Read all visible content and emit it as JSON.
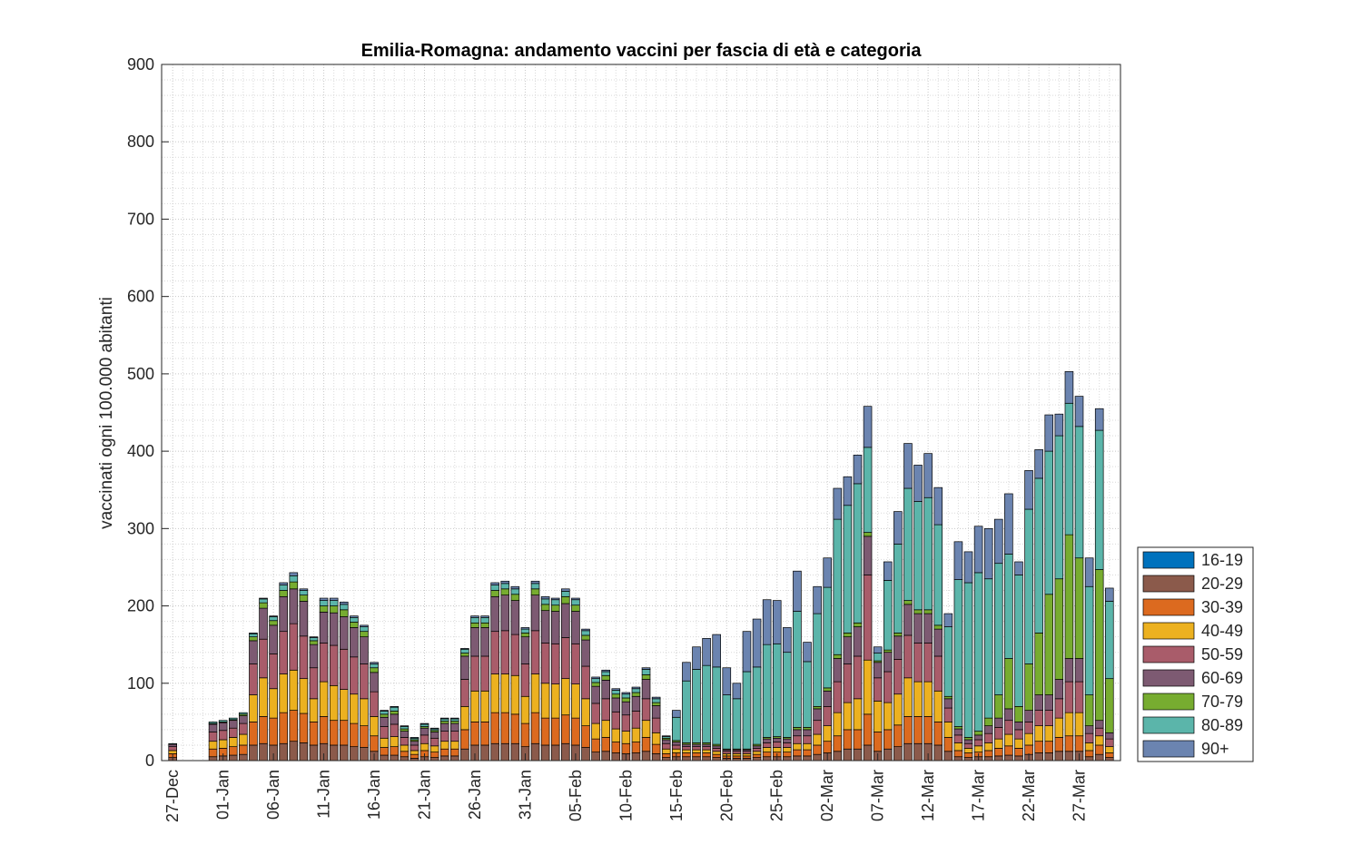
{
  "chart_data": {
    "type": "stacked_bar",
    "title": "Emilia-Romagna: andamento vaccini per fascia di età e categoria",
    "y_label": "vaccinati ogni 100.000 abitanti",
    "categories": [
      "27-Dec",
      null,
      null,
      null,
      null,
      "01-Jan",
      null,
      null,
      null,
      null,
      "06-Jan",
      null,
      null,
      null,
      null,
      "11-Jan",
      null,
      null,
      null,
      null,
      "16-Jan",
      null,
      null,
      null,
      null,
      "21-Jan",
      null,
      null,
      null,
      null,
      "26-Jan",
      null,
      null,
      null,
      null,
      "31-Jan",
      null,
      null,
      null,
      null,
      "05-Feb",
      null,
      null,
      null,
      null,
      "10-Feb",
      null,
      null,
      null,
      null,
      "15-Feb",
      null,
      null,
      null,
      null,
      "20-Feb",
      null,
      null,
      null,
      null,
      "25-Feb",
      null,
      null,
      null,
      null,
      "02-Mar",
      null,
      null,
      null,
      null,
      "07-Mar",
      null,
      null,
      null,
      null,
      "12-Mar",
      null,
      null,
      null,
      null,
      "17-Mar",
      null,
      null,
      null,
      null,
      "22-Mar",
      null,
      null,
      null,
      null,
      "27-Mar",
      null,
      null,
      null
    ],
    "ylim": [
      0,
      900
    ],
    "yticks": [
      0,
      100,
      200,
      300,
      400,
      500,
      600,
      700,
      800,
      900
    ],
    "grid": true,
    "minor_grid": true,
    "legend_position": "right",
    "series": [
      {
        "name": "16-19",
        "color": "#0072bd",
        "values": [
          0,
          0,
          0,
          0,
          0,
          0,
          0,
          0,
          0,
          0,
          0,
          0,
          0,
          0,
          0,
          0,
          0,
          0,
          0,
          0,
          0,
          0,
          0,
          0,
          0,
          0,
          0,
          0,
          0,
          0,
          0,
          0,
          0,
          0,
          0,
          0,
          0,
          0,
          0,
          0,
          0,
          0,
          0,
          0,
          0,
          0,
          0,
          0,
          0,
          0,
          0,
          0,
          0,
          0,
          0,
          0,
          0,
          0,
          0,
          0,
          0,
          0,
          0,
          0,
          0,
          0,
          0,
          0,
          0,
          0,
          0,
          0,
          0,
          0,
          0,
          0,
          0,
          0,
          0,
          0,
          0,
          0,
          0,
          0,
          0,
          0,
          0,
          0,
          0,
          0,
          0,
          0,
          0,
          0
        ]
      },
      {
        "name": "20-29",
        "color": "#8b5a4b",
        "values": [
          4,
          0,
          0,
          0,
          5,
          6,
          7,
          8,
          20,
          22,
          20,
          22,
          25,
          23,
          20,
          22,
          20,
          20,
          18,
          17,
          12,
          7,
          7,
          5,
          3,
          5,
          4,
          6,
          6,
          15,
          20,
          20,
          22,
          22,
          22,
          18,
          22,
          20,
          20,
          22,
          20,
          17,
          11,
          12,
          10,
          9,
          10,
          12,
          9,
          4,
          5,
          5,
          5,
          5,
          4,
          3,
          3,
          3,
          4,
          5,
          5,
          5,
          6,
          6,
          8,
          10,
          12,
          15,
          15,
          20,
          12,
          15,
          18,
          22,
          22,
          22,
          20,
          12,
          5,
          4,
          5,
          5,
          6,
          7,
          6,
          8,
          10,
          10,
          12,
          12,
          12,
          5,
          8,
          4
        ]
      },
      {
        "name": "30-39",
        "color": "#dc6a1f",
        "values": [
          5,
          0,
          0,
          0,
          10,
          10,
          11,
          12,
          30,
          35,
          35,
          40,
          40,
          38,
          30,
          35,
          32,
          32,
          30,
          28,
          20,
          10,
          11,
          7,
          5,
          8,
          7,
          9,
          9,
          25,
          30,
          30,
          40,
          40,
          38,
          30,
          40,
          35,
          35,
          37,
          35,
          28,
          17,
          18,
          14,
          13,
          14,
          18,
          12,
          5,
          5,
          5,
          5,
          5,
          4,
          3,
          3,
          3,
          4,
          6,
          6,
          6,
          8,
          8,
          12,
          15,
          20,
          25,
          25,
          40,
          25,
          25,
          28,
          35,
          35,
          35,
          30,
          18,
          8,
          6,
          6,
          8,
          10,
          12,
          10,
          12,
          15,
          15,
          18,
          20,
          20,
          8,
          12,
          6
        ]
      },
      {
        "name": "40-49",
        "color": "#ecb120",
        "values": [
          4,
          0,
          0,
          0,
          10,
          11,
          12,
          14,
          35,
          50,
          38,
          50,
          52,
          45,
          30,
          45,
          45,
          40,
          38,
          35,
          25,
          12,
          13,
          8,
          5,
          9,
          8,
          10,
          10,
          30,
          40,
          40,
          50,
          50,
          50,
          35,
          50,
          45,
          44,
          47,
          44,
          35,
          20,
          22,
          17,
          16,
          18,
          22,
          15,
          6,
          5,
          4,
          4,
          4,
          4,
          3,
          3,
          3,
          4,
          6,
          6,
          6,
          8,
          8,
          14,
          20,
          30,
          35,
          40,
          70,
          40,
          35,
          40,
          50,
          45,
          45,
          40,
          20,
          10,
          6,
          8,
          10,
          12,
          15,
          12,
          15,
          20,
          20,
          25,
          30,
          30,
          10,
          12,
          8
        ]
      },
      {
        "name": "50-59",
        "color": "#a95c6a",
        "values": [
          5,
          0,
          0,
          0,
          12,
          12,
          12,
          14,
          40,
          50,
          45,
          55,
          60,
          55,
          40,
          50,
          52,
          52,
          48,
          45,
          32,
          15,
          16,
          10,
          7,
          11,
          10,
          13,
          13,
          35,
          45,
          45,
          55,
          56,
          53,
          42,
          56,
          52,
          52,
          53,
          52,
          42,
          26,
          28,
          22,
          21,
          22,
          28,
          19,
          7,
          5,
          4,
          4,
          4,
          4,
          3,
          3,
          3,
          4,
          6,
          7,
          6,
          10,
          10,
          18,
          25,
          40,
          50,
          55,
          110,
          30,
          40,
          45,
          55,
          50,
          50,
          45,
          18,
          10,
          6,
          8,
          12,
          15,
          18,
          12,
          15,
          20,
          20,
          25,
          40,
          40,
          12,
          10,
          10
        ]
      },
      {
        "name": "60-69",
        "color": "#7d5a72",
        "values": [
          3,
          0,
          0,
          0,
          10,
          10,
          10,
          10,
          30,
          40,
          37,
          45,
          45,
          45,
          30,
          40,
          42,
          42,
          38,
          35,
          25,
          12,
          13,
          8,
          5,
          9,
          8,
          10,
          10,
          30,
          37,
          37,
          45,
          46,
          44,
          35,
          46,
          42,
          42,
          44,
          42,
          34,
          22,
          24,
          18,
          17,
          19,
          25,
          16,
          5,
          4,
          3,
          3,
          3,
          3,
          2,
          2,
          2,
          3,
          5,
          5,
          5,
          8,
          8,
          15,
          20,
          30,
          35,
          38,
          50,
          20,
          25,
          30,
          40,
          38,
          38,
          35,
          12,
          8,
          5,
          6,
          10,
          12,
          15,
          10,
          15,
          20,
          20,
          25,
          30,
          30,
          10,
          10,
          8
        ]
      },
      {
        "name": "70-79",
        "color": "#77ac30",
        "values": [
          0,
          0,
          0,
          0,
          1,
          1,
          1,
          2,
          5,
          7,
          6,
          8,
          9,
          8,
          5,
          8,
          9,
          9,
          7,
          7,
          6,
          4,
          4,
          3,
          2,
          2,
          2,
          3,
          3,
          4,
          6,
          6,
          8,
          8,
          8,
          5,
          8,
          8,
          8,
          9,
          8,
          6,
          5,
          6,
          5,
          5,
          5,
          6,
          4,
          2,
          2,
          2,
          2,
          2,
          2,
          1,
          1,
          1,
          2,
          2,
          2,
          2,
          3,
          3,
          3,
          4,
          5,
          5,
          5,
          5,
          2,
          3,
          4,
          5,
          5,
          5,
          5,
          3,
          3,
          3,
          5,
          10,
          30,
          65,
          20,
          60,
          80,
          130,
          130,
          160,
          130,
          40,
          195,
          70
        ]
      },
      {
        "name": "80-89",
        "color": "#5bb5aa",
        "values": [
          1,
          0,
          0,
          0,
          2,
          2,
          2,
          2,
          4,
          5,
          5,
          7,
          8,
          6,
          4,
          7,
          7,
          7,
          6,
          6,
          5,
          4,
          5,
          3,
          2,
          3,
          2,
          3,
          3,
          5,
          7,
          7,
          7,
          7,
          7,
          5,
          7,
          7,
          7,
          7,
          7,
          6,
          5,
          5,
          5,
          5,
          5,
          7,
          5,
          2,
          30,
          80,
          95,
          100,
          100,
          70,
          65,
          100,
          100,
          120,
          120,
          110,
          150,
          85,
          120,
          130,
          175,
          165,
          180,
          110,
          10,
          90,
          115,
          145,
          140,
          145,
          130,
          90,
          190,
          200,
          205,
          180,
          170,
          135,
          170,
          200,
          200,
          185,
          185,
          170,
          170,
          140,
          180,
          100
        ]
      },
      {
        "name": "90+",
        "color": "#6b84b0",
        "values": [
          0,
          0,
          0,
          0,
          0,
          0,
          0,
          0,
          1,
          1,
          1,
          3,
          4,
          2,
          1,
          3,
          3,
          3,
          2,
          2,
          2,
          1,
          1,
          1,
          1,
          1,
          1,
          1,
          1,
          1,
          2,
          2,
          3,
          3,
          3,
          2,
          3,
          3,
          2,
          3,
          2,
          2,
          2,
          2,
          2,
          2,
          2,
          2,
          2,
          1,
          9,
          24,
          29,
          35,
          42,
          35,
          20,
          52,
          62,
          58,
          56,
          32,
          52,
          25,
          35,
          38,
          40,
          37,
          37,
          53,
          8,
          24,
          42,
          58,
          47,
          57,
          48,
          17,
          49,
          40,
          60,
          65,
          57,
          78,
          17,
          50,
          37,
          47,
          28,
          41,
          39,
          37,
          28,
          17
        ]
      }
    ]
  }
}
